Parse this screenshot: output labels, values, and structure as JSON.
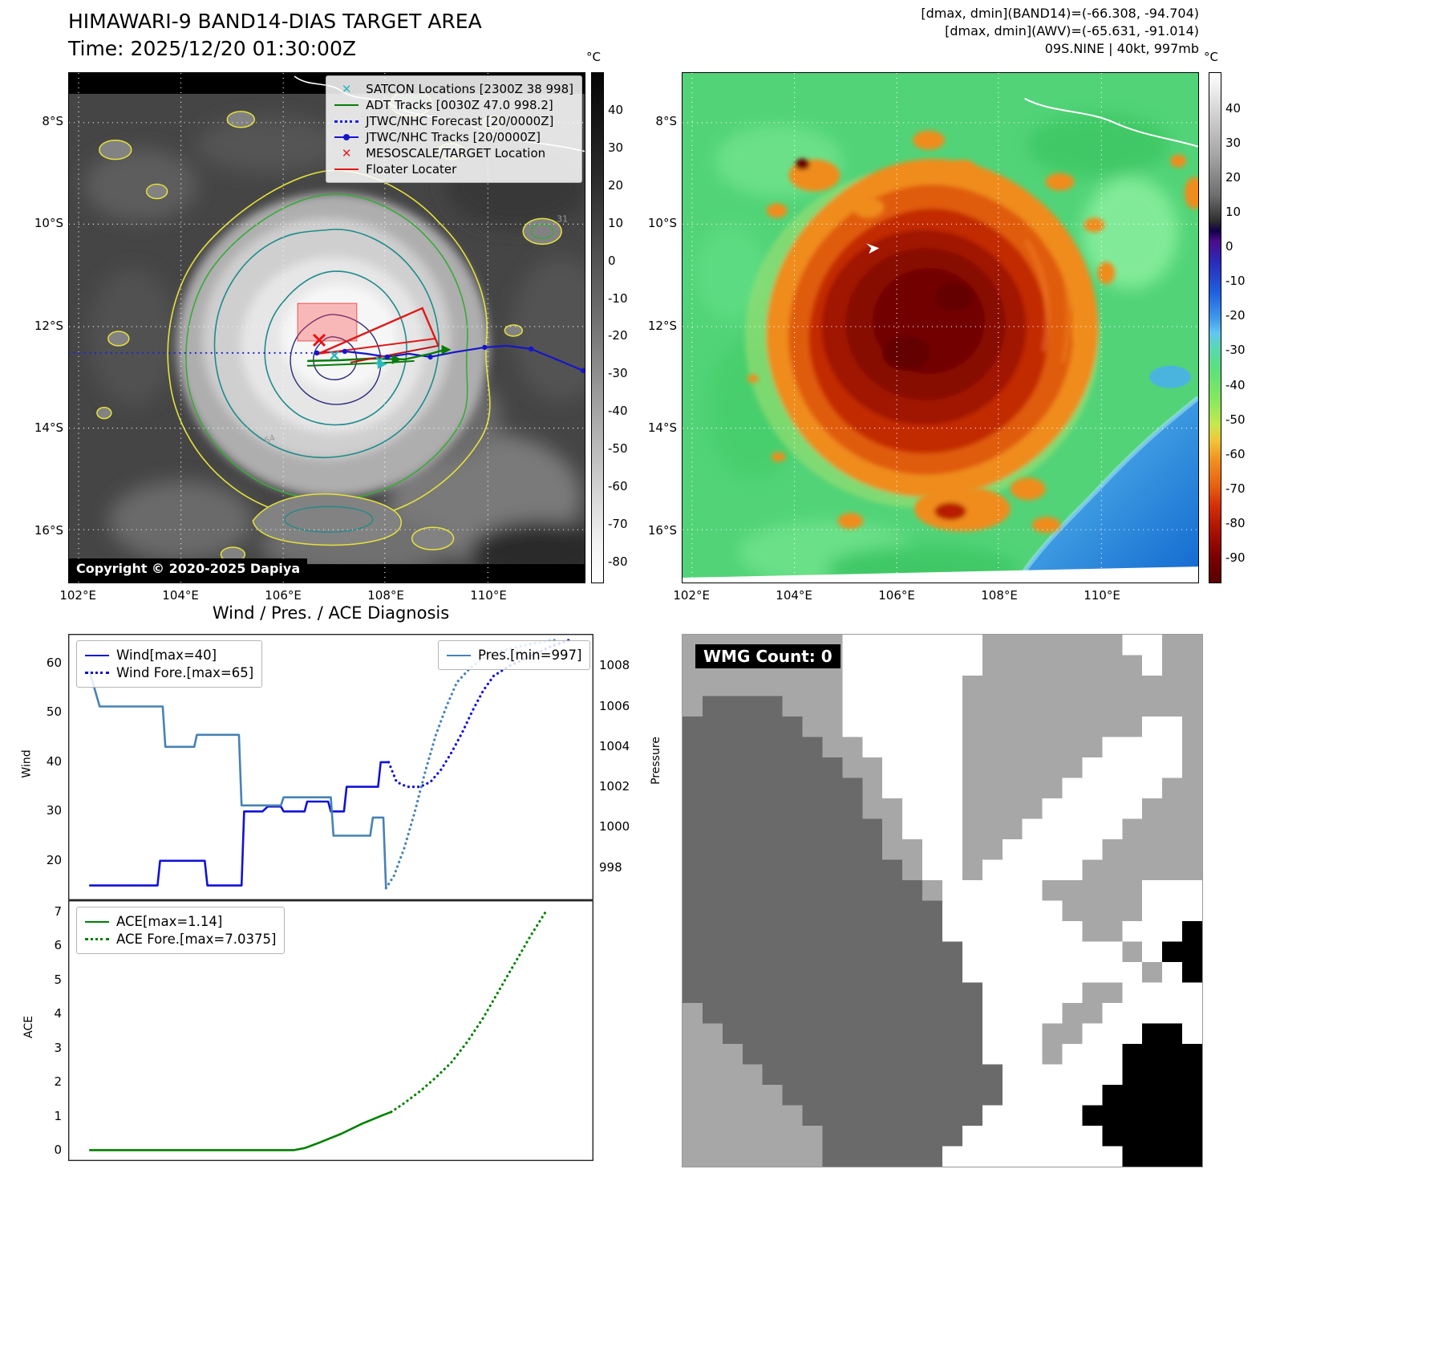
{
  "header": {
    "band14_title": "HIMAWARI-9 BAND14-DIAS TARGET AREA",
    "band14_time": "Time: 2025/12/20 01:30:00Z",
    "right_lines": [
      "[dmax, dmin](BAND14)=(-66.308, -94.704)",
      "[dmax, dmin](AWV)=(-65.631, -91.014)",
      "09S.NINE | 40kt, 997mb"
    ]
  },
  "band14_panel": {
    "legend": [
      {
        "label": "SATCON Locations [2300Z 38 998]",
        "marker": "x",
        "color": "#2ab8b8"
      },
      {
        "label": "ADT Tracks [0030Z 47.0 998.2]",
        "marker": "line",
        "color": "#0a7a0a"
      },
      {
        "label": "JTWC/NHC Forecast [20/0000Z]",
        "marker": "dotted",
        "color": "#2222dd"
      },
      {
        "label": "JTWC/NHC Tracks [20/0000Z]",
        "marker": "line-dot",
        "color": "#1515cc"
      },
      {
        "label": "MESOSCALE/TARGET Location",
        "marker": "x",
        "color": "#e02020"
      },
      {
        "label": "Floater Locater",
        "marker": "line",
        "color": "#e01818"
      }
    ],
    "copyright": "Copyright © 2020-2025 Dapiya",
    "contour_labels": [
      "64",
      "31"
    ],
    "colorbar": {
      "unit": "°C",
      "ticks": [
        40,
        30,
        20,
        10,
        0,
        -10,
        -20,
        -30,
        -40,
        -50,
        -60,
        -70,
        -80
      ]
    },
    "lat_ticks": [
      "8°S",
      "10°S",
      "12°S",
      "14°S",
      "16°S"
    ],
    "lon_ticks": [
      "102°E",
      "104°E",
      "106°E",
      "108°E",
      "110°E"
    ]
  },
  "awv_panel": {
    "colorbar": {
      "unit": "°C",
      "ticks": [
        40,
        30,
        20,
        10,
        0,
        -10,
        -20,
        -30,
        -40,
        -50,
        -60,
        -70,
        -80,
        -90
      ]
    },
    "lat_ticks": [
      "8°S",
      "10°S",
      "12°S",
      "14°S",
      "16°S"
    ],
    "lon_ticks": [
      "102°E",
      "104°E",
      "106°E",
      "108°E",
      "110°E"
    ]
  },
  "diagnosis": {
    "title": "Wind / Pres. / ACE Diagnosis"
  },
  "wmg_panel": {
    "label": "WMG Count: 0",
    "palette": {
      "L": "#a7a7a7",
      "D": "#6a6a6a",
      "W": "#ffffff",
      "B": "#000000"
    },
    "grid": [
      "LLLLLLLLWWWWWWWLLLLLLLWWLL",
      "LLLLLLLLWWWWWWWLLLLLLLLWLL",
      "LLLLLLLLWWWWWWLLLLLLLLLLLL",
      "LDDDDLLLWWWWWWLLLLLLLLLLLL",
      "DDDDDDLLWWWWWWLLLLLLLLLWWL",
      "DDDDDDDLLWWWWWLLLLLLLWWWWL",
      "DDDDDDDDLLWWWWLLLLLLWWWWWL",
      "DDDDDDDDDLWWWWLLLLLWWWWWLL",
      "DDDDDDDDDLLWWWLLLLWWWWWLLL",
      "DDDDDDDDDDLWWWLLLWWWWWLLLL",
      "DDDDDDDDDDLLWWLLWWWWWLLLLL",
      "DDDDDDDDDDDLWWLWWWWWLLLLLL",
      "DDDDDDDDDDDDLWWWWWLLLLLWWW",
      "DDDDDDDDDDDDDWWWWWWLLLLWWW",
      "DDDDDDDDDDDDDWWWWWWWLLWWWB",
      "DDDDDDDDDDDDDDWWWWWWWWLWBB",
      "DDDDDDDDDDDDDDWWWWWWWWWLWB",
      "DDDDDDDDDDDDDDDWWWWWLLWWWW",
      "LDDDDDDDDDDDDDDWWWWLLWWWWW",
      "LLDDDDDDDDDDDDDWWWLLWWWBBW",
      "LLLDDDDDDDDDDDDWWWLWWWBBBB",
      "LLLLDDDDDDDDDDDDWWWWWWBBBB",
      "LLLLLDDDDDDDDDDDWWWWWBBBBB",
      "LLLLLLDDDDDDDDDWWWWWBBBBBB",
      "LLLLLLLDDDDDDDWWWWWWWBBBBB",
      "LLLLLLLDDDDDDWWWWWWWWWBBBB"
    ]
  },
  "chart_data": [
    {
      "type": "line",
      "title": "Wind / Pres. / ACE Diagnosis",
      "xlim": [
        0,
        100
      ],
      "left_axis": {
        "label": "Wind",
        "ticks": [
          20,
          30,
          40,
          50,
          60
        ],
        "ylim": [
          12,
          66
        ]
      },
      "right_axis": {
        "label": "Pressure",
        "ticks": [
          998,
          1000,
          1002,
          1004,
          1006,
          1008
        ],
        "ylim": [
          996.4,
          1009.6
        ]
      },
      "series": [
        {
          "name": "Wind[max=40]",
          "axis": "left",
          "style": "solid",
          "color": "#1111d6",
          "max": 40,
          "points": [
            [
              4,
              15
            ],
            [
              17,
              15
            ],
            [
              17.5,
              20
            ],
            [
              26,
              20
            ],
            [
              26.5,
              15
            ],
            [
              33,
              15
            ],
            [
              33.5,
              30
            ],
            [
              37,
              30
            ],
            [
              38,
              31
            ],
            [
              40.5,
              31
            ],
            [
              41,
              30
            ],
            [
              45,
              30
            ],
            [
              45.5,
              32
            ],
            [
              49.5,
              32
            ],
            [
              50,
              30
            ],
            [
              52.5,
              30
            ],
            [
              53,
              35
            ],
            [
              59,
              35
            ],
            [
              59.5,
              40
            ],
            [
              61,
              40
            ]
          ]
        },
        {
          "name": "Wind Fore.[max=65]",
          "axis": "left",
          "style": "dotted",
          "color": "#1111d6",
          "max": 65,
          "points": [
            [
              61,
              40
            ],
            [
              62.5,
              36
            ],
            [
              64.5,
              35
            ],
            [
              67,
              35
            ],
            [
              69,
              36
            ],
            [
              71,
              38.5
            ],
            [
              73,
              42
            ],
            [
              75,
              46
            ],
            [
              77,
              50.5
            ],
            [
              79,
              54.5
            ],
            [
              81,
              57.5
            ],
            [
              84,
              59.5
            ],
            [
              88,
              61.5
            ],
            [
              92,
              63.5
            ],
            [
              96,
              65
            ]
          ]
        },
        {
          "name": "Pres.[min=997]",
          "axis": "right",
          "style": "solid",
          "color": "#4682b4",
          "min": 997,
          "points": [
            [
              4,
              1007.8
            ],
            [
              6,
              1006
            ],
            [
              18,
              1006
            ],
            [
              18.5,
              1004
            ],
            [
              24,
              1004
            ],
            [
              24.5,
              1004.6
            ],
            [
              32.5,
              1004.6
            ],
            [
              33,
              1001.1
            ],
            [
              40.5,
              1001.1
            ],
            [
              41,
              1001.5
            ],
            [
              50,
              1001.5
            ],
            [
              50.5,
              999.6
            ],
            [
              57.5,
              999.6
            ],
            [
              58,
              1000.5
            ],
            [
              60,
              1000.5
            ],
            [
              60.5,
              997
            ]
          ]
        },
        {
          "name": "Pres. Forecast",
          "axis": "right",
          "style": "dotted",
          "color": "#4682b4",
          "points": [
            [
              60.5,
              997
            ],
            [
              62,
              997.6
            ],
            [
              64,
              999
            ],
            [
              66,
              1000.8
            ],
            [
              68,
              1002.8
            ],
            [
              70,
              1004.6
            ],
            [
              72,
              1006
            ],
            [
              74,
              1007.2
            ],
            [
              76.5,
              1007.9
            ],
            [
              79,
              1008.4
            ],
            [
              83,
              1008.8
            ],
            [
              88,
              1009.1
            ],
            [
              93,
              1009.3
            ]
          ]
        }
      ],
      "legend_left": [
        {
          "label": "Wind[max=40]",
          "style": "solid",
          "color": "#1111d6"
        },
        {
          "label": "Wind Fore.[max=65]",
          "style": "dotted",
          "color": "#1111d6"
        }
      ],
      "legend_right": [
        {
          "label": "Pres.[min=997]",
          "style": "solid",
          "color": "#4682b4"
        }
      ]
    },
    {
      "type": "line",
      "xlim": [
        0,
        100
      ],
      "left_axis": {
        "label": "ACE",
        "ticks": [
          0,
          1,
          2,
          3,
          4,
          5,
          6,
          7
        ],
        "ylim": [
          -0.3,
          7.35
        ]
      },
      "series": [
        {
          "name": "ACE[max=1.14]",
          "axis": "left",
          "style": "solid",
          "color": "#008000",
          "max": 1.14,
          "points": [
            [
              4,
              0.02
            ],
            [
              20,
              0.02
            ],
            [
              35,
              0.02
            ],
            [
              43,
              0.02
            ],
            [
              45,
              0.08
            ],
            [
              48,
              0.25
            ],
            [
              52,
              0.5
            ],
            [
              56,
              0.8
            ],
            [
              60,
              1.05
            ],
            [
              61.5,
              1.14
            ]
          ]
        },
        {
          "name": "ACE Fore.[max=7.0375]",
          "axis": "left",
          "style": "dotted",
          "color": "#008000",
          "max": 7.0375,
          "points": [
            [
              61.5,
              1.14
            ],
            [
              64,
              1.4
            ],
            [
              67,
              1.75
            ],
            [
              70,
              2.15
            ],
            [
              73,
              2.6
            ],
            [
              76,
              3.2
            ],
            [
              79,
              3.9
            ],
            [
              82,
              4.7
            ],
            [
              85,
              5.5
            ],
            [
              88,
              6.3
            ],
            [
              91,
              7.04
            ]
          ]
        }
      ],
      "legend_left": [
        {
          "label": "ACE[max=1.14]",
          "style": "solid",
          "color": "#008000"
        },
        {
          "label": "ACE Fore.[max=7.0375]",
          "style": "dotted",
          "color": "#008000"
        }
      ]
    }
  ]
}
